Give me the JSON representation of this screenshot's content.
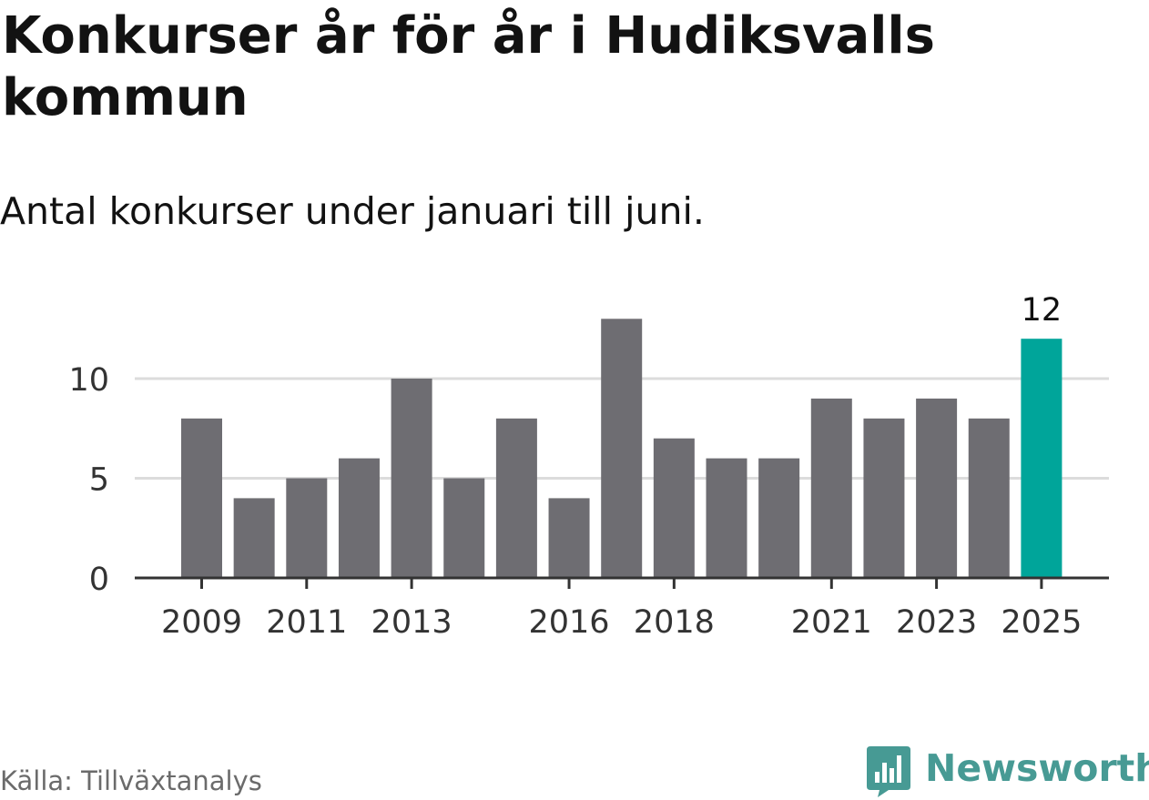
{
  "title": "Konkurser år för år i Hudiksvalls kommun",
  "subtitle": "Antal konkurser under januari till juni.",
  "source": "Källa: Tillväxtanalys",
  "brand": "Newsworthy",
  "colors": {
    "bar": "#6e6d72",
    "highlight": "#00a59a",
    "grid": "#dcdcdc",
    "axis": "#333333",
    "brand": "#479a94"
  },
  "chart_data": {
    "type": "bar",
    "categories": [
      "2009",
      "2010",
      "2011",
      "2012",
      "2013",
      "2014",
      "2015",
      "2016",
      "2017",
      "2018",
      "2019",
      "2020",
      "2021",
      "2022",
      "2023",
      "2024",
      "2025"
    ],
    "values": [
      8,
      4,
      5,
      6,
      10,
      5,
      8,
      4,
      13,
      7,
      6,
      6,
      9,
      8,
      9,
      8,
      12
    ],
    "x_tick_labels": [
      "2009",
      "2011",
      "2013",
      "2016",
      "2018",
      "2021",
      "2023",
      "2025"
    ],
    "y_ticks": [
      0,
      5,
      10
    ],
    "ylim": [
      0,
      13
    ],
    "highlight": {
      "category": "2025",
      "label": "12"
    },
    "grid": true,
    "legend": "none"
  }
}
